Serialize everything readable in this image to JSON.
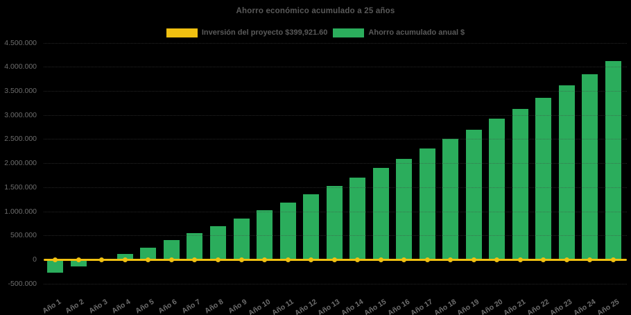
{
  "title": "Ahorro económico acumulado a 25 años",
  "colors": {
    "background": "#000000",
    "bar_green": "#2BAD5C",
    "line_yellow": "#F0C011",
    "heading_text": "#595959",
    "axis_text": "#6E6E6E"
  },
  "legend": {
    "items": [
      {
        "label": "Inversión del proyecto $399,921.60",
        "color": "#F0C011",
        "series": "investment-line"
      },
      {
        "label": "Ahorro acumulado anual $",
        "color": "#2BAD5C",
        "series": "savings-bars"
      }
    ]
  },
  "chart_data": {
    "type": "bar",
    "title": "Ahorro económico acumulado a 25 años",
    "legend_position": "top",
    "grid": true,
    "ylim": [
      -500000,
      4500000
    ],
    "y_tick_interval": 500000,
    "y_ticks": [
      {
        "value": 4500000,
        "label": "4.500.000"
      },
      {
        "value": 4000000,
        "label": "4.000.000"
      },
      {
        "value": 3500000,
        "label": "3.500.000"
      },
      {
        "value": 3000000,
        "label": "3.000.000"
      },
      {
        "value": 2500000,
        "label": "2.500.000"
      },
      {
        "value": 2000000,
        "label": "2.000.000"
      },
      {
        "value": 1500000,
        "label": "1.500.000"
      },
      {
        "value": 1000000,
        "label": "1.000.000"
      },
      {
        "value": 500000,
        "label": "500.000"
      },
      {
        "value": 0,
        "label": "0"
      },
      {
        "value": -500000,
        "label": "-500.000"
      }
    ],
    "categories": [
      "Año 1",
      "Año 2",
      "Año 3",
      "Año 4",
      "Año 5",
      "Año 6",
      "Año 7",
      "Año 8",
      "Año 9",
      "Año 10",
      "Año 11",
      "Año 12",
      "Año 13",
      "Año 14",
      "Año 15",
      "Año 16",
      "Año 17",
      "Año 18",
      "Año 19",
      "Año 20",
      "Año 21",
      "Año 22",
      "Año 23",
      "Año 24",
      "Año 25"
    ],
    "series": [
      {
        "name": "Ahorro acumulado anual $",
        "type": "bar",
        "color": "#2BAD5C",
        "values": [
          -270000,
          -150000,
          -10000,
          120000,
          250000,
          400000,
          545000,
          695000,
          855000,
          1020000,
          1185000,
          1355000,
          1530000,
          1705000,
          1895000,
          2090000,
          2300000,
          2505000,
          2700000,
          2920000,
          3130000,
          3360000,
          3610000,
          3850000,
          4120000
        ]
      },
      {
        "name": "Inversión del proyecto $399,921.60",
        "type": "line",
        "color": "#F0C011",
        "investment_amount": 399921.6,
        "plotted_at_value": 0,
        "marker": "circle"
      }
    ]
  }
}
